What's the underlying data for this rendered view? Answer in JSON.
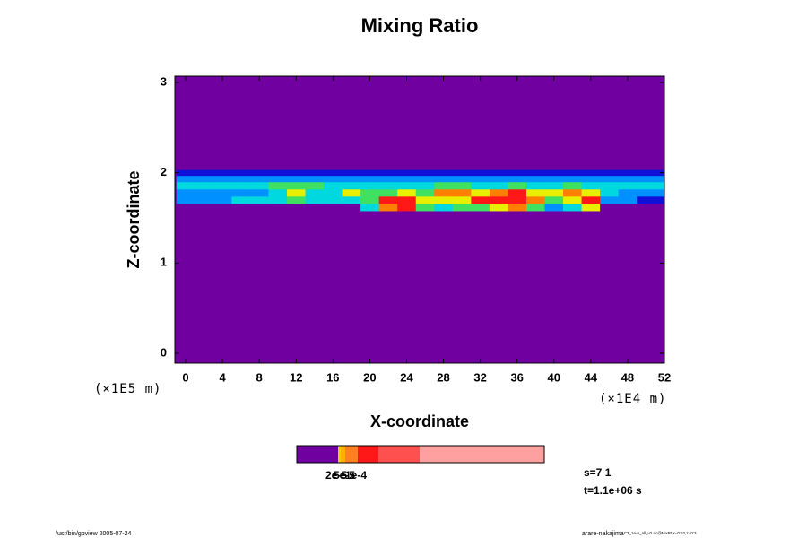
{
  "chart_data": {
    "type": "heatmap",
    "title": "Mixing Ratio",
    "x_label": "X-coordinate",
    "y_label": "Z-coordinate",
    "x_unit": "(×1E4 m)",
    "y_unit": "(×1E5 m)",
    "xlim": [
      -1.17,
      52
    ],
    "ylim": [
      -0.11,
      3.07
    ],
    "xticks": [
      0,
      4,
      8,
      12,
      16,
      20,
      24,
      28,
      32,
      36,
      40,
      44,
      48,
      52
    ],
    "yticks": [
      0,
      1,
      2,
      3
    ],
    "x": [
      0,
      2,
      4,
      6,
      8,
      10,
      12,
      14,
      16,
      18,
      20,
      22,
      24,
      26,
      28,
      30,
      32,
      34,
      36,
      38,
      40,
      42,
      44,
      46,
      48,
      50,
      52
    ],
    "z": [
      1.62,
      1.7,
      1.78,
      1.86,
      1.94,
      2.0
    ],
    "values": [
      [
        0,
        0,
        0,
        0,
        0,
        0,
        0,
        0,
        0,
        0,
        0.4,
        0.7,
        0.75,
        0.5,
        0.4,
        0.45,
        0.5,
        0.6,
        0.7,
        0.45,
        0.3,
        0.4,
        0.6,
        0,
        0,
        0,
        0
      ],
      [
        0.3,
        0.3,
        0.3,
        0.35,
        0.35,
        0.35,
        0.45,
        0.4,
        0.35,
        0.4,
        0.5,
        0.8,
        0.85,
        0.6,
        0.55,
        0.6,
        0.75,
        0.85,
        0.9,
        0.7,
        0.5,
        0.6,
        0.85,
        0.3,
        0.25,
        0.2,
        0.2
      ],
      [
        0.3,
        0.3,
        0.3,
        0.3,
        0.3,
        0.4,
        0.55,
        0.4,
        0.35,
        0.6,
        0.45,
        0.5,
        0.6,
        0.45,
        0.7,
        0.65,
        0.55,
        0.7,
        0.8,
        0.6,
        0.55,
        0.7,
        0.6,
        0.4,
        0.3,
        0.3,
        0.3
      ],
      [
        0.35,
        0.35,
        0.35,
        0.35,
        0.35,
        0.45,
        0.45,
        0.45,
        0.35,
        0.35,
        0.35,
        0.35,
        0.35,
        0.35,
        0.5,
        0.5,
        0.35,
        0.35,
        0.5,
        0.35,
        0.35,
        0.5,
        0.35,
        0.35,
        0.35,
        0.35,
        0.35
      ],
      [
        0.3,
        0.3,
        0.3,
        0.3,
        0.3,
        0.3,
        0.3,
        0.3,
        0.3,
        0.3,
        0.3,
        0.3,
        0.3,
        0.3,
        0.3,
        0.3,
        0.3,
        0.3,
        0.3,
        0.3,
        0.3,
        0.3,
        0.3,
        0.3,
        0.3,
        0.3,
        0.3
      ],
      [
        0.15,
        0.15,
        0.15,
        0.15,
        0.15,
        0.15,
        0.15,
        0.15,
        0.15,
        0.15,
        0.15,
        0.15,
        0.15,
        0.15,
        0.15,
        0.15,
        0.15,
        0.15,
        0.15,
        0.15,
        0.15,
        0.15,
        0.15,
        0.15,
        0.15,
        0.15,
        0.15
      ]
    ],
    "levels": [
      0,
      0.1,
      0.25,
      0.35,
      0.45,
      0.55,
      0.65,
      0.75
    ],
    "colors": [
      "#7000a0",
      "#1010d8",
      "#0090ff",
      "#00d8e0",
      "#40e060",
      "#e8f000",
      "#ff8000",
      "#ff1818"
    ],
    "colorbar_labels": [
      "2e-5",
      "5e-5",
      "1e-4"
    ],
    "info": [
      "s=7 1",
      "t=1.1e+06 s"
    ],
    "footer_left": "/usr/bin/gpview 2005-07-24",
    "footer_right": "arare-nakajima",
    "footer_right_small": "C3_1e-5_all_v2.nc@MixRt,x=0:52,z=0:3"
  }
}
